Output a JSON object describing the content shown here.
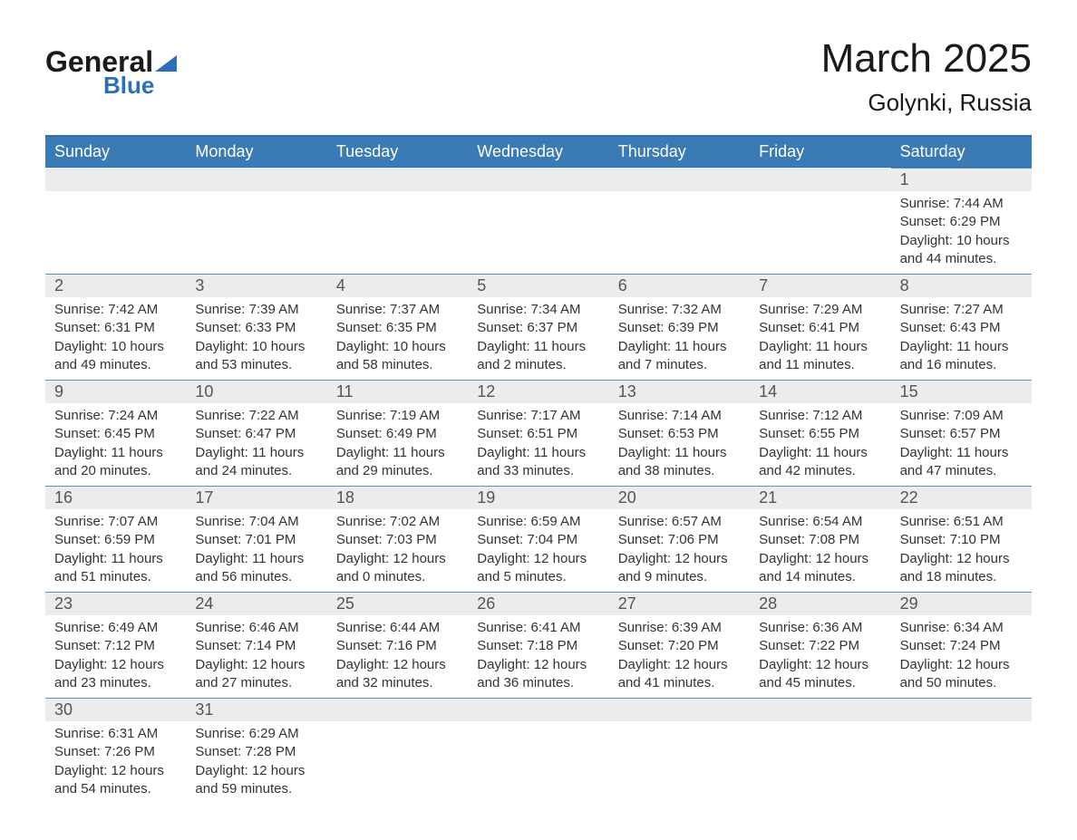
{
  "logo": {
    "general": "General",
    "blue": "Blue"
  },
  "title": {
    "month": "March 2025",
    "location": "Golynki, Russia"
  },
  "dayNames": [
    "Sunday",
    "Monday",
    "Tuesday",
    "Wednesday",
    "Thursday",
    "Friday",
    "Saturday"
  ],
  "colors": {
    "header_bg": "#3a7ab5",
    "header_border": "#2d6fb5",
    "row_border": "#5b8fc5",
    "daynum_bg": "#ececec",
    "text": "#333333",
    "daynum_text": "#555555"
  },
  "weeks": [
    [
      null,
      null,
      null,
      null,
      null,
      null,
      {
        "n": "1",
        "sr": "Sunrise: 7:44 AM",
        "ss": "Sunset: 6:29 PM",
        "d1": "Daylight: 10 hours",
        "d2": "and 44 minutes."
      }
    ],
    [
      {
        "n": "2",
        "sr": "Sunrise: 7:42 AM",
        "ss": "Sunset: 6:31 PM",
        "d1": "Daylight: 10 hours",
        "d2": "and 49 minutes."
      },
      {
        "n": "3",
        "sr": "Sunrise: 7:39 AM",
        "ss": "Sunset: 6:33 PM",
        "d1": "Daylight: 10 hours",
        "d2": "and 53 minutes."
      },
      {
        "n": "4",
        "sr": "Sunrise: 7:37 AM",
        "ss": "Sunset: 6:35 PM",
        "d1": "Daylight: 10 hours",
        "d2": "and 58 minutes."
      },
      {
        "n": "5",
        "sr": "Sunrise: 7:34 AM",
        "ss": "Sunset: 6:37 PM",
        "d1": "Daylight: 11 hours",
        "d2": "and 2 minutes."
      },
      {
        "n": "6",
        "sr": "Sunrise: 7:32 AM",
        "ss": "Sunset: 6:39 PM",
        "d1": "Daylight: 11 hours",
        "d2": "and 7 minutes."
      },
      {
        "n": "7",
        "sr": "Sunrise: 7:29 AM",
        "ss": "Sunset: 6:41 PM",
        "d1": "Daylight: 11 hours",
        "d2": "and 11 minutes."
      },
      {
        "n": "8",
        "sr": "Sunrise: 7:27 AM",
        "ss": "Sunset: 6:43 PM",
        "d1": "Daylight: 11 hours",
        "d2": "and 16 minutes."
      }
    ],
    [
      {
        "n": "9",
        "sr": "Sunrise: 7:24 AM",
        "ss": "Sunset: 6:45 PM",
        "d1": "Daylight: 11 hours",
        "d2": "and 20 minutes."
      },
      {
        "n": "10",
        "sr": "Sunrise: 7:22 AM",
        "ss": "Sunset: 6:47 PM",
        "d1": "Daylight: 11 hours",
        "d2": "and 24 minutes."
      },
      {
        "n": "11",
        "sr": "Sunrise: 7:19 AM",
        "ss": "Sunset: 6:49 PM",
        "d1": "Daylight: 11 hours",
        "d2": "and 29 minutes."
      },
      {
        "n": "12",
        "sr": "Sunrise: 7:17 AM",
        "ss": "Sunset: 6:51 PM",
        "d1": "Daylight: 11 hours",
        "d2": "and 33 minutes."
      },
      {
        "n": "13",
        "sr": "Sunrise: 7:14 AM",
        "ss": "Sunset: 6:53 PM",
        "d1": "Daylight: 11 hours",
        "d2": "and 38 minutes."
      },
      {
        "n": "14",
        "sr": "Sunrise: 7:12 AM",
        "ss": "Sunset: 6:55 PM",
        "d1": "Daylight: 11 hours",
        "d2": "and 42 minutes."
      },
      {
        "n": "15",
        "sr": "Sunrise: 7:09 AM",
        "ss": "Sunset: 6:57 PM",
        "d1": "Daylight: 11 hours",
        "d2": "and 47 minutes."
      }
    ],
    [
      {
        "n": "16",
        "sr": "Sunrise: 7:07 AM",
        "ss": "Sunset: 6:59 PM",
        "d1": "Daylight: 11 hours",
        "d2": "and 51 minutes."
      },
      {
        "n": "17",
        "sr": "Sunrise: 7:04 AM",
        "ss": "Sunset: 7:01 PM",
        "d1": "Daylight: 11 hours",
        "d2": "and 56 minutes."
      },
      {
        "n": "18",
        "sr": "Sunrise: 7:02 AM",
        "ss": "Sunset: 7:03 PM",
        "d1": "Daylight: 12 hours",
        "d2": "and 0 minutes."
      },
      {
        "n": "19",
        "sr": "Sunrise: 6:59 AM",
        "ss": "Sunset: 7:04 PM",
        "d1": "Daylight: 12 hours",
        "d2": "and 5 minutes."
      },
      {
        "n": "20",
        "sr": "Sunrise: 6:57 AM",
        "ss": "Sunset: 7:06 PM",
        "d1": "Daylight: 12 hours",
        "d2": "and 9 minutes."
      },
      {
        "n": "21",
        "sr": "Sunrise: 6:54 AM",
        "ss": "Sunset: 7:08 PM",
        "d1": "Daylight: 12 hours",
        "d2": "and 14 minutes."
      },
      {
        "n": "22",
        "sr": "Sunrise: 6:51 AM",
        "ss": "Sunset: 7:10 PM",
        "d1": "Daylight: 12 hours",
        "d2": "and 18 minutes."
      }
    ],
    [
      {
        "n": "23",
        "sr": "Sunrise: 6:49 AM",
        "ss": "Sunset: 7:12 PM",
        "d1": "Daylight: 12 hours",
        "d2": "and 23 minutes."
      },
      {
        "n": "24",
        "sr": "Sunrise: 6:46 AM",
        "ss": "Sunset: 7:14 PM",
        "d1": "Daylight: 12 hours",
        "d2": "and 27 minutes."
      },
      {
        "n": "25",
        "sr": "Sunrise: 6:44 AM",
        "ss": "Sunset: 7:16 PM",
        "d1": "Daylight: 12 hours",
        "d2": "and 32 minutes."
      },
      {
        "n": "26",
        "sr": "Sunrise: 6:41 AM",
        "ss": "Sunset: 7:18 PM",
        "d1": "Daylight: 12 hours",
        "d2": "and 36 minutes."
      },
      {
        "n": "27",
        "sr": "Sunrise: 6:39 AM",
        "ss": "Sunset: 7:20 PM",
        "d1": "Daylight: 12 hours",
        "d2": "and 41 minutes."
      },
      {
        "n": "28",
        "sr": "Sunrise: 6:36 AM",
        "ss": "Sunset: 7:22 PM",
        "d1": "Daylight: 12 hours",
        "d2": "and 45 minutes."
      },
      {
        "n": "29",
        "sr": "Sunrise: 6:34 AM",
        "ss": "Sunset: 7:24 PM",
        "d1": "Daylight: 12 hours",
        "d2": "and 50 minutes."
      }
    ],
    [
      {
        "n": "30",
        "sr": "Sunrise: 6:31 AM",
        "ss": "Sunset: 7:26 PM",
        "d1": "Daylight: 12 hours",
        "d2": "and 54 minutes."
      },
      {
        "n": "31",
        "sr": "Sunrise: 6:29 AM",
        "ss": "Sunset: 7:28 PM",
        "d1": "Daylight: 12 hours",
        "d2": "and 59 minutes."
      },
      null,
      null,
      null,
      null,
      null
    ]
  ]
}
